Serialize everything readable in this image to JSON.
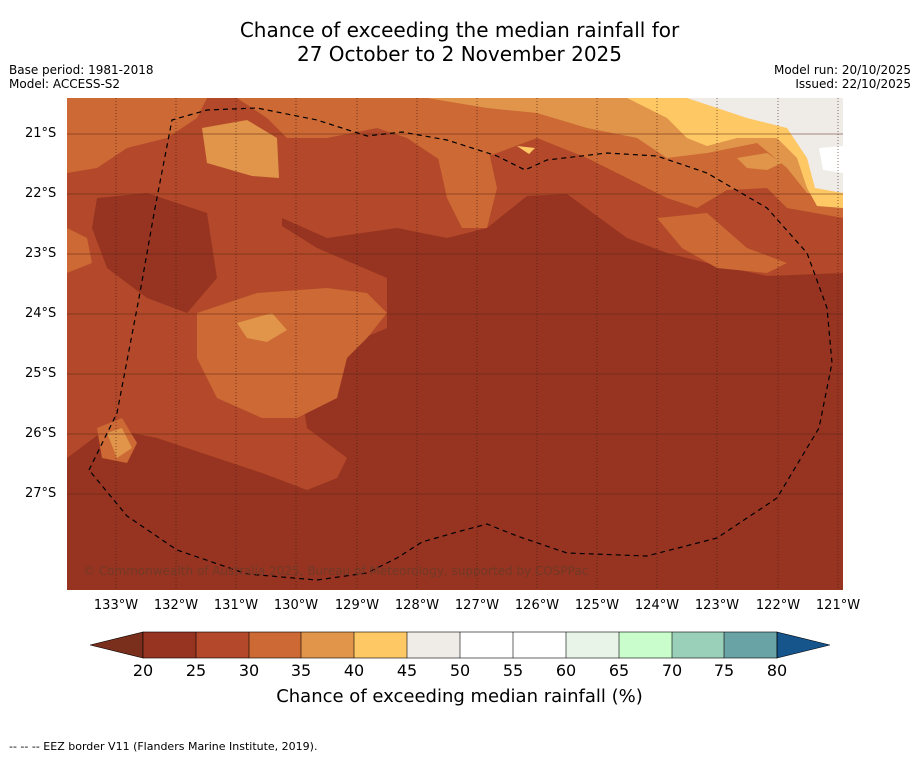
{
  "title": {
    "line1": "Chance of exceeding the median rainfall for",
    "line2": "27 October to 2 November 2025"
  },
  "meta": {
    "base_period": "Base period: 1981-2018",
    "model": "Model: ACCESS-S2",
    "model_run": "Model run: 20/10/2025",
    "issued": "Issued: 22/10/2025"
  },
  "map": {
    "copyright": "© Commonwealth of Australia 2025, Bureau of Meteorology, supported by COSPPac",
    "lat_labels": [
      "21°S",
      "22°S",
      "23°S",
      "24°S",
      "25°S",
      "26°S",
      "27°S"
    ],
    "lon_labels": [
      "133°W",
      "132°W",
      "131°W",
      "130°W",
      "129°W",
      "128°W",
      "127°W",
      "126°W",
      "125°W",
      "124°W",
      "123°W",
      "122°W",
      "121°W"
    ]
  },
  "colorbar": {
    "title": "Chance of exceeding median rainfall (%)",
    "ticks": [
      "20",
      "25",
      "30",
      "35",
      "40",
      "45",
      "50",
      "55",
      "60",
      "65",
      "70",
      "75",
      "80"
    ],
    "colors": {
      "under": "#7a2e1c",
      "20-25": "#973421",
      "25-30": "#b3492a",
      "30-35": "#cc6934",
      "35-40": "#e0954a",
      "40-45": "#fec865",
      "45-50": "#efebe7",
      "50-55": "#ffffff",
      "55-60": "#ffffff",
      "60-65": "#e9f4e9",
      "65-70": "#c9fdcb",
      "70-75": "#9ad0b9",
      "75-80": "#6aa3a6",
      "80-85": "#437a99",
      "over": "#16548c"
    }
  },
  "footnote": "--  --  -- EEZ border V11 (Flanders Marine Institute, 2019)."
}
